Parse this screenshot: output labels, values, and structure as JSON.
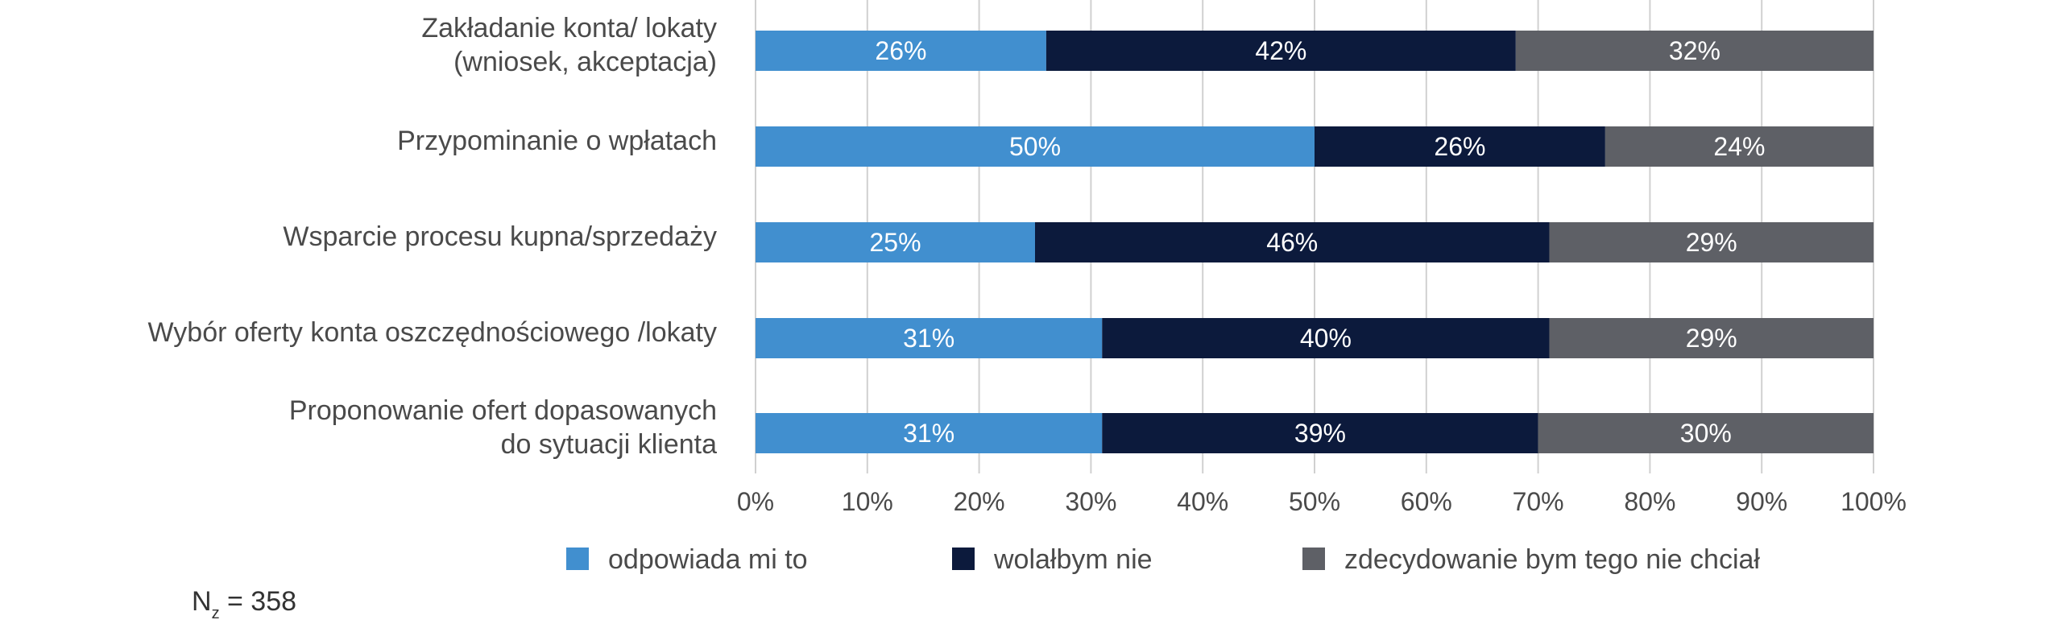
{
  "chart_data": {
    "type": "bar",
    "orientation": "horizontal",
    "stacked": true,
    "categories": [
      [
        "Zakładanie konta/ lokaty",
        "(wniosek, akceptacja)"
      ],
      [
        "Przypominanie o wpłatach"
      ],
      [
        "Wsparcie procesu kupna/sprzedaży"
      ],
      [
        "Wybór oferty konta oszczędnościowego /lokaty"
      ],
      [
        "Proponowanie ofert dopasowanych",
        "do sytuacji klienta"
      ]
    ],
    "series": [
      {
        "name": "odpowiada mi to",
        "color": "#418fcf",
        "values": [
          26,
          50,
          25,
          31,
          31
        ]
      },
      {
        "name": "wolałbym nie",
        "color": "#0c1a3c",
        "values": [
          42,
          26,
          46,
          40,
          39
        ]
      },
      {
        "name": "zdecydowanie bym tego nie chciał",
        "color": "#5e6066",
        "values": [
          32,
          24,
          29,
          29,
          30
        ]
      }
    ],
    "value_suffix": "%",
    "xlim": [
      0,
      100
    ],
    "x_ticks": [
      "0%",
      "10%",
      "20%",
      "30%",
      "40%",
      "50%",
      "60%",
      "70%",
      "80%",
      "90%",
      "100%"
    ],
    "grid": "vertical",
    "legend_position": "bottom",
    "title": "",
    "xlabel": "",
    "ylabel": ""
  },
  "note": {
    "prefix": "N",
    "subscript": "z",
    "suffix": " = 358"
  }
}
